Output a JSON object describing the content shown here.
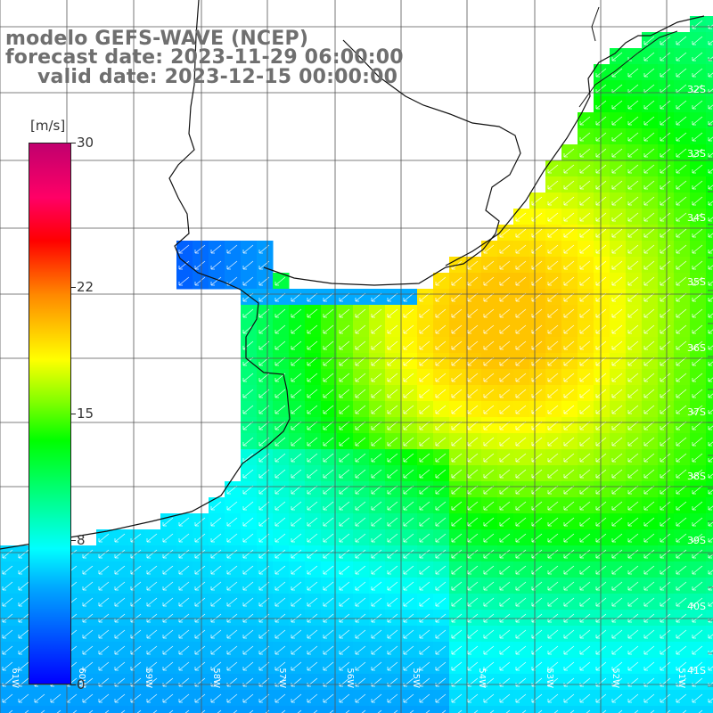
{
  "header": {
    "model": "modelo GEFS-WAVE (NCEP)",
    "forecast": "forecast date: 2023-11-29 06:00:00",
    "valid": "valid date: 2023-12-15 00:00:00"
  },
  "colorbar": {
    "unit": "[m/s]",
    "ticks": [
      "30",
      "22",
      "15",
      "8",
      "0"
    ],
    "tick_values": [
      30,
      22,
      15,
      8,
      0
    ],
    "colors": [
      "#0000ff",
      "#00aaff",
      "#00ffff",
      "#00ff00",
      "#7fff00",
      "#ffff00",
      "#ff8800",
      "#ff0000",
      "#ff0066",
      "#c0006e"
    ]
  },
  "map": {
    "lat_labels": [
      "32S",
      "33S",
      "34S",
      "35S",
      "36S",
      "37S",
      "38S",
      "39S",
      "40S",
      "41S"
    ],
    "lon_labels": [
      "61W",
      "60W",
      "59W",
      "58W",
      "57W",
      "56W",
      "55W",
      "54W",
      "53W",
      "52W",
      "51W"
    ],
    "land_color": "#ffffff",
    "grid_color": "#555555",
    "arrow_color": "#ffffff",
    "wind_direction": "southwest",
    "max_wind_region": "36S 55W",
    "max_wind_speed": 17
  }
}
